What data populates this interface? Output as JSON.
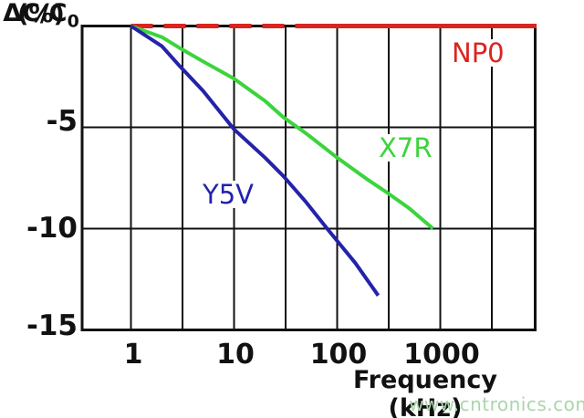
{
  "page": {
    "background": "#ffffff"
  },
  "watermark": {
    "text": "www.cntronics.com",
    "color": "#a9d6a9"
  },
  "chart_data": {
    "type": "line",
    "title": "",
    "x_axis": {
      "label": "Frequency (kHz)",
      "scale": "log",
      "unit": "kHz",
      "tick_labels": [
        "1",
        "10",
        "100",
        "1000"
      ],
      "tick_values": [
        1,
        10,
        100,
        1000
      ],
      "gridline_freqs": [
        1,
        3.16,
        10,
        31.6,
        100,
        316,
        1000,
        3162
      ],
      "range_kHz": [
        0.33,
        8600
      ]
    },
    "y_axis": {
      "label_main": "ΔC/C",
      "label_sub": "0",
      "label_units": "(%)",
      "tick_labels": [
        "-5",
        "-10",
        "-15"
      ],
      "tick_values": [
        -5,
        -10,
        -15
      ],
      "gridline_values": [
        -5,
        -10
      ],
      "range_pct": [
        -15,
        0
      ]
    },
    "grid": true,
    "legend_position": "inline-labels",
    "axis_color": "#111111",
    "series": [
      {
        "name": "NP0",
        "color": "#da2420",
        "stroke_width": 5,
        "style": "dashed-then-solid",
        "dash_until_kHz": 60,
        "points": [
          [
            1,
            0
          ],
          [
            60,
            0
          ],
          [
            8600,
            0
          ]
        ]
      },
      {
        "name": "X7R",
        "color": "#3cd43c",
        "stroke_width": 4,
        "style": "solid",
        "points": [
          [
            1,
            0
          ],
          [
            2,
            -0.55
          ],
          [
            3,
            -1.1
          ],
          [
            5,
            -1.75
          ],
          [
            10,
            -2.6
          ],
          [
            20,
            -3.7
          ],
          [
            30,
            -4.5
          ],
          [
            50,
            -5.3
          ],
          [
            100,
            -6.5
          ],
          [
            200,
            -7.6
          ],
          [
            300,
            -8.2
          ],
          [
            500,
            -9.0
          ],
          [
            850,
            -10.0
          ]
        ]
      },
      {
        "name": "Y5V",
        "color": "#2323aa",
        "stroke_width": 4,
        "style": "solid",
        "points": [
          [
            1,
            0
          ],
          [
            2,
            -1.0
          ],
          [
            3,
            -2.0
          ],
          [
            5,
            -3.2
          ],
          [
            10,
            -5.1
          ],
          [
            20,
            -6.5
          ],
          [
            30,
            -7.4
          ],
          [
            50,
            -8.7
          ],
          [
            80,
            -10.0
          ],
          [
            150,
            -11.7
          ],
          [
            250,
            -13.3
          ]
        ]
      }
    ],
    "curve_labels": [
      {
        "text": "NP0",
        "color": "#da2420"
      },
      {
        "text": "X7R",
        "color": "#3cd43c"
      },
      {
        "text": "Y5V",
        "color": "#2323aa"
      }
    ]
  }
}
